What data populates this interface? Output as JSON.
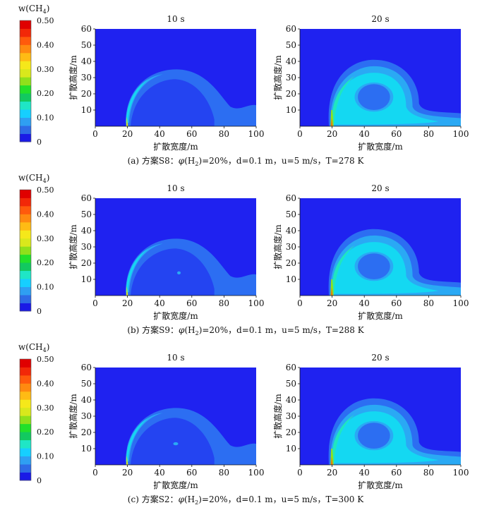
{
  "colorbar": {
    "label": "w(CH",
    "label_sub": "4",
    "label_close": ")",
    "ticks": [
      "0.50",
      "0.40",
      "0.30",
      "0.20",
      "0.10",
      "0"
    ],
    "tick_values": [
      0.5,
      0.4,
      0.3,
      0.2,
      0.1,
      0
    ],
    "colors": [
      "#1a1ae6",
      "#2e6be6",
      "#2f9ff2",
      "#16cfff",
      "#1fe6c6",
      "#12c960",
      "#22e02a",
      "#8fe01b",
      "#d9e81c",
      "#f5e81a",
      "#ffbb14",
      "#ff8a10",
      "#ff5a0c",
      "#f22808",
      "#e00000"
    ]
  },
  "axis": {
    "xlabel": "扩散宽度/m",
    "ylabel": "扩散高度/m",
    "xticks": [
      "0",
      "20",
      "40",
      "60",
      "80",
      "100"
    ],
    "yticks": [
      "10",
      "20",
      "30",
      "40",
      "50",
      "60"
    ],
    "xlim": [
      0,
      100
    ],
    "ylim": [
      0,
      60
    ]
  },
  "rows": [
    {
      "caption_prefix": "(a) 方案S8：",
      "caption_phi": "φ",
      "caption_h2": "(H",
      "caption_sub": "2",
      "caption_rest": ")=20%，d=0.1 m，u=5 m/s，T=278 K",
      "panels": [
        {
          "time": "10 s"
        },
        {
          "time": "20 s"
        }
      ]
    },
    {
      "caption_prefix": "(b) 方案S9：",
      "caption_phi": "φ",
      "caption_h2": "(H",
      "caption_sub": "2",
      "caption_rest": ")=20%，d=0.1 m，u=5 m/s，T=288 K",
      "panels": [
        {
          "time": "10 s"
        },
        {
          "time": "20 s"
        }
      ]
    },
    {
      "caption_prefix": "(c) 方案S2：",
      "caption_phi": "φ",
      "caption_h2": "(H",
      "caption_sub": "2",
      "caption_rest": ")=20%，d=0.1 m，u=5 m/s，T=300 K",
      "panels": [
        {
          "time": "10 s"
        },
        {
          "time": "20 s"
        }
      ]
    }
  ],
  "chart_data": {
    "type": "heatmap",
    "title": "",
    "xlabel": "扩散宽度/m",
    "ylabel": "扩散高度/m",
    "xlim": [
      0,
      100
    ],
    "ylim": [
      0,
      60
    ],
    "colorbar_label": "w(CH4)",
    "colorbar_range": [
      0,
      0.5
    ],
    "source_x": 20,
    "cases": [
      {
        "case": "S8",
        "T_K": 278,
        "times": [
          {
            "time": "10 s",
            "cloud_center_x": 48,
            "cloud_top_y": 34,
            "cloud_right_x": 100,
            "plume_levels": [
              0.05,
              0.08,
              0.12
            ]
          },
          {
            "time": "20 s",
            "cloud_center_x": 45,
            "cloud_top_y": 40,
            "cloud_right_x": 100,
            "plume_levels": [
              0.05,
              0.08,
              0.12,
              0.15
            ]
          }
        ]
      },
      {
        "case": "S9",
        "T_K": 288,
        "times": [
          {
            "time": "10 s",
            "cloud_center_x": 48,
            "cloud_top_y": 34,
            "cloud_right_x": 100,
            "plume_levels": [
              0.05,
              0.08,
              0.12
            ]
          },
          {
            "time": "20 s",
            "cloud_center_x": 45,
            "cloud_top_y": 41,
            "cloud_right_x": 100,
            "plume_levels": [
              0.05,
              0.08,
              0.12,
              0.15
            ]
          }
        ]
      },
      {
        "case": "S2",
        "T_K": 300,
        "times": [
          {
            "time": "10 s",
            "cloud_center_x": 48,
            "cloud_top_y": 34,
            "cloud_right_x": 100,
            "plume_levels": [
              0.05,
              0.08,
              0.12
            ]
          },
          {
            "time": "20 s",
            "cloud_center_x": 45,
            "cloud_top_y": 40,
            "cloud_right_x": 100,
            "plume_levels": [
              0.05,
              0.08,
              0.12,
              0.15
            ]
          }
        ]
      }
    ]
  }
}
